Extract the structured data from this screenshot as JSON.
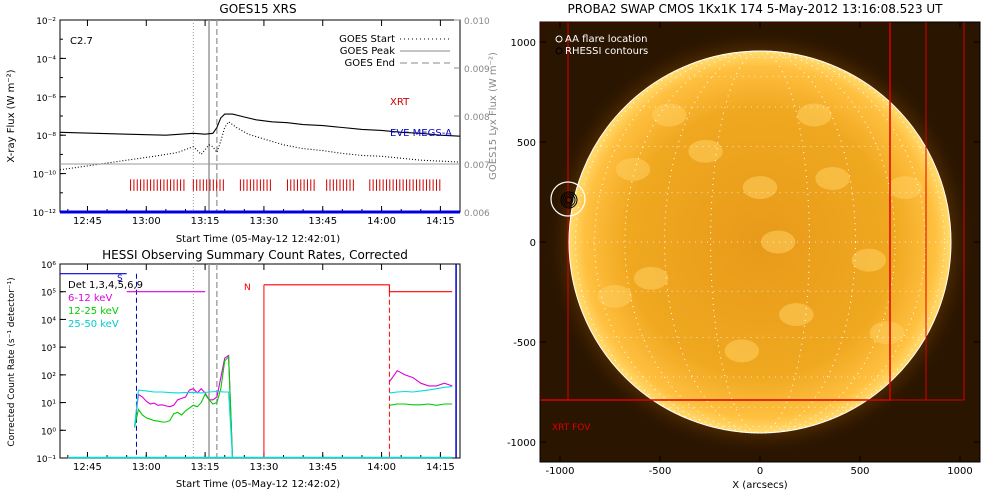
{
  "chart_data": [
    {
      "id": "goes",
      "type": "line",
      "title": "GOES15 XRS",
      "xlabel": "Start Time (05-May-12 12:42:01)",
      "ylabel": "X-ray Flux (W m⁻²)",
      "ylabel_right": "GOES15 Lyx Flux (W m⁻²)",
      "x_ticks": [
        "12:45",
        "13:00",
        "13:15",
        "13:30",
        "13:45",
        "14:00",
        "14:15"
      ],
      "x_tick_minutes": [
        45,
        60,
        75,
        90,
        105,
        120,
        135
      ],
      "xlim_minutes": [
        38,
        140
      ],
      "y_log": true,
      "ylim_exp": [
        -12,
        -2
      ],
      "y_ticks": [
        "10⁻²",
        "10⁻⁴",
        "10⁻⁶",
        "10⁻⁸",
        "10⁻¹⁰",
        "10⁻¹²"
      ],
      "y_right_ticks": [
        "0.010",
        "0.009",
        "0.008",
        "0.007",
        "0.006"
      ],
      "y_right_lim": [
        0.006,
        0.01
      ],
      "annotation": "C2.7",
      "legend": [
        {
          "label": "GOES Start",
          "style": "dotted"
        },
        {
          "label": "GOES Peak",
          "style": "solid"
        },
        {
          "label": "GOES End",
          "style": "dashed"
        }
      ],
      "markers_minutes": {
        "start": 72,
        "peak": 76,
        "end": 78
      },
      "labels": {
        "xrt": "XRT",
        "eve": "EVE MEGS-A"
      },
      "series": [
        {
          "name": "long",
          "color": "#000000",
          "style": "solid",
          "x": [
            38,
            55,
            65,
            72,
            75,
            77,
            78,
            79,
            80,
            82,
            85,
            88,
            92,
            96,
            100,
            105,
            110,
            115,
            120,
            125,
            130,
            135,
            140
          ],
          "y": [
            -7.85,
            -7.95,
            -8.0,
            -7.9,
            -7.95,
            -7.9,
            -7.6,
            -7.1,
            -6.9,
            -6.9,
            -7.05,
            -7.2,
            -7.3,
            -7.35,
            -7.45,
            -7.5,
            -7.6,
            -7.7,
            -7.75,
            -7.85,
            -7.9,
            -8.0,
            -8.05
          ]
        },
        {
          "name": "short",
          "color": "#000000",
          "style": "dotted",
          "x": [
            38,
            45,
            55,
            62,
            68,
            72,
            74,
            76,
            77,
            78,
            79,
            80,
            81,
            83,
            86,
            90,
            95,
            100,
            105,
            110,
            115,
            120,
            125,
            130,
            135,
            140
          ],
          "y": [
            -9.8,
            -9.6,
            -9.3,
            -9.1,
            -8.9,
            -8.6,
            -9.0,
            -8.5,
            -8.6,
            -8.9,
            -8.3,
            -7.6,
            -7.3,
            -7.6,
            -7.95,
            -8.2,
            -8.5,
            -8.7,
            -8.8,
            -8.95,
            -9.05,
            -9.1,
            -9.2,
            -9.3,
            -9.35,
            -9.4
          ]
        },
        {
          "name": "lyx",
          "color": "#999999",
          "style": "solid",
          "x": [
            38,
            140
          ],
          "y": [
            -9.5,
            -9.5
          ]
        },
        {
          "name": "eve",
          "color": "#0000dd",
          "style": "solid",
          "x": [
            38,
            140
          ],
          "y": [
            -12.0,
            -12.0
          ]
        }
      ],
      "xrt_intervals_minutes": [
        [
          56,
          70
        ],
        [
          72,
          80
        ],
        [
          84,
          92
        ],
        [
          96,
          103
        ],
        [
          106,
          113
        ],
        [
          117,
          135
        ]
      ]
    },
    {
      "id": "hessi",
      "type": "line",
      "title": "HESSI Observing Summary Count Rates, Corrected",
      "xlabel": "Start Time (05-May-12 12:42:02)",
      "ylabel": "Corrected Count Rate (s⁻¹ detector⁻¹)",
      "x_ticks": [
        "12:45",
        "13:00",
        "13:15",
        "13:30",
        "13:45",
        "14:00",
        "14:15"
      ],
      "x_tick_minutes": [
        45,
        60,
        75,
        90,
        105,
        120,
        135
      ],
      "xlim_minutes": [
        38,
        140
      ],
      "y_log": true,
      "ylim_exp": [
        -1,
        6
      ],
      "y_ticks": [
        "10⁶",
        "10⁵",
        "10⁴",
        "10³",
        "10²",
        "10¹",
        "10⁰",
        "10⁻¹"
      ],
      "legend": [
        {
          "label": "Det 1,3,4,5,6,9",
          "color": "#000000"
        },
        {
          "label": "6-12 keV",
          "color": "#dd00dd"
        },
        {
          "label": "12-25 keV",
          "color": "#00cc00"
        },
        {
          "label": "25-50 keV",
          "color": "#00dddd"
        }
      ],
      "flags": {
        "s": "S",
        "n": "N"
      },
      "markers_minutes": {
        "start": 72,
        "peak": 76,
        "end": 78,
        "night_start": 57.5,
        "night_end": 90,
        "saa": 122
      },
      "series": [
        {
          "name": "6-12 keV",
          "color": "#dd00dd",
          "x": [
            57,
            58,
            59,
            60,
            61,
            62,
            63,
            64,
            65,
            66,
            67,
            68,
            69,
            70,
            71,
            72,
            73,
            74,
            75,
            76,
            77,
            78,
            79,
            80,
            81,
            82
          ],
          "y": [
            0.1,
            1.3,
            1.2,
            1.05,
            0.95,
            0.98,
            0.9,
            0.92,
            0.88,
            0.85,
            0.9,
            1.1,
            1.15,
            1.2,
            1.45,
            1.5,
            1.35,
            1.5,
            1.35,
            1.1,
            1.1,
            1.2,
            1.9,
            2.6,
            2.7,
            -1
          ]
        },
        {
          "name": "12-25 keV",
          "color": "#00cc00",
          "x": [
            57,
            58,
            59,
            60,
            61,
            62,
            63,
            64,
            65,
            66,
            67,
            68,
            69,
            70,
            71,
            72,
            73,
            74,
            75,
            76,
            77,
            78,
            79,
            80,
            81,
            82
          ],
          "y": [
            0.1,
            0.75,
            0.55,
            0.45,
            0.4,
            0.35,
            0.33,
            0.3,
            0.3,
            0.35,
            0.6,
            0.65,
            0.55,
            0.7,
            0.8,
            0.9,
            0.85,
            1.0,
            1.3,
            1.1,
            0.95,
            1.0,
            1.5,
            2.5,
            2.65,
            -1
          ]
        },
        {
          "name": "25-50 keV",
          "color": "#00dddd",
          "x": [
            57,
            58,
            60,
            62,
            64,
            66,
            68,
            70,
            72,
            74,
            76,
            78,
            80,
            81,
            82
          ],
          "y": [
            0.1,
            1.45,
            1.42,
            1.38,
            1.38,
            1.36,
            1.35,
            1.36,
            1.37,
            1.35,
            1.38,
            1.4,
            1.38,
            1.38,
            -1
          ]
        },
        {
          "name": "Det",
          "color": "#0000dd",
          "x": [
            38,
            55
          ],
          "y": [
            5.65,
            5.65
          ]
        },
        {
          "name": "6-12 keV flat",
          "color": "#dd00dd",
          "x": [
            55,
            75
          ],
          "y": [
            5.0,
            5.0
          ]
        },
        {
          "name": "pre-flare",
          "color": "#ff0000",
          "x": [
            90,
            122,
            122,
            138
          ],
          "y": [
            5.25,
            5.25,
            5.0,
            5.0
          ]
        },
        {
          "name": "6-12 keV late",
          "color": "#dd00dd",
          "x": [
            122,
            124,
            126,
            128,
            130,
            132,
            134,
            136,
            138
          ],
          "y": [
            1.75,
            2.15,
            2.0,
            1.9,
            1.7,
            1.6,
            1.6,
            1.7,
            1.6
          ]
        },
        {
          "name": "12-25 keV late",
          "color": "#00cc00",
          "x": [
            122,
            124,
            126,
            128,
            130,
            132,
            134,
            136,
            138
          ],
          "y": [
            0.9,
            0.95,
            0.95,
            0.92,
            0.92,
            0.95,
            0.9,
            0.95,
            0.95
          ]
        },
        {
          "name": "25-50 keV late",
          "color": "#00dddd",
          "x": [
            122,
            124,
            126,
            128,
            130,
            132,
            134,
            136,
            138
          ],
          "y": [
            1.35,
            1.38,
            1.4,
            1.38,
            1.42,
            1.45,
            1.5,
            1.55,
            1.58
          ]
        }
      ]
    },
    {
      "id": "swap",
      "type": "image",
      "title": "PROBA2 SWAP CMOS 1Kx1K 174  5-May-2012 13:16:08.523 UT",
      "xlabel": "X (arcsecs)",
      "ylabel": "Y (arcsecs)",
      "x_ticks": [
        -1000,
        -500,
        0,
        500,
        1000
      ],
      "y_ticks": [
        1000,
        500,
        0,
        -500,
        -1000
      ],
      "xlim": [
        -1100,
        1100
      ],
      "ylim": [
        -1100,
        1100
      ],
      "legend": [
        {
          "label": "AA flare location",
          "symbol": "circle"
        },
        {
          "label": "RHESSI contours",
          "symbol": "circle"
        }
      ],
      "fov_label": "XRT FOV",
      "flare_location": [
        -960,
        215
      ],
      "solar_radius": 955
    }
  ]
}
